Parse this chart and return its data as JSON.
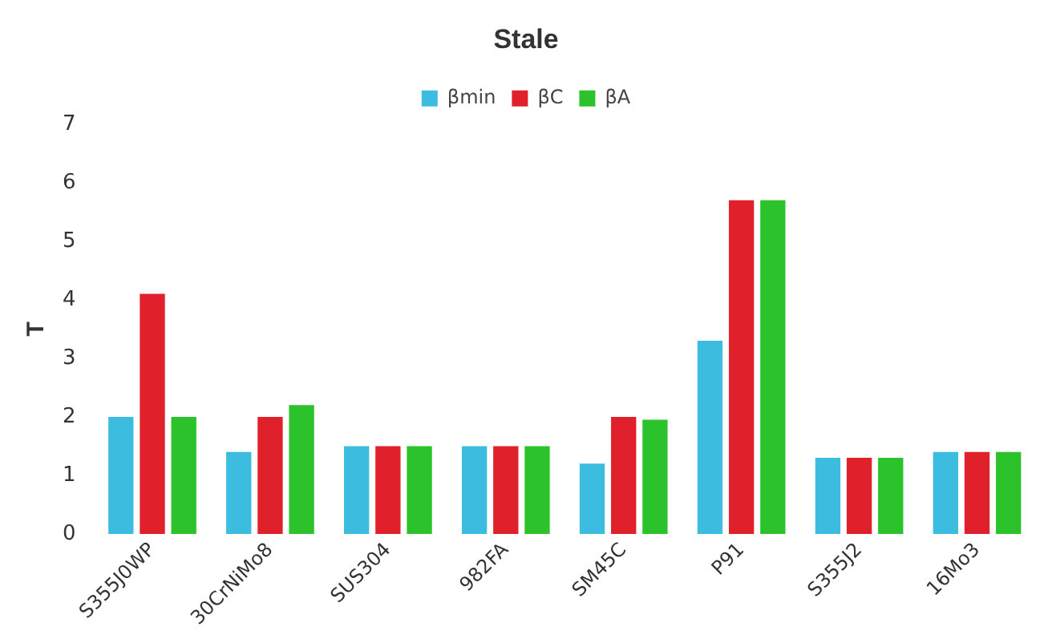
{
  "chart_data": {
    "type": "bar",
    "title": "Stale",
    "ylabel": "T",
    "categories": [
      "S355J0WP",
      "30CrNiMo8",
      "SUS304",
      "982FA",
      "SM45C",
      "P91",
      "S355J2",
      "16Mo3"
    ],
    "series": [
      {
        "name": "βmin",
        "color": "#3cbde0",
        "values": [
          2.0,
          1.4,
          1.5,
          1.5,
          1.2,
          3.3,
          1.3,
          1.4
        ]
      },
      {
        "name": "βC",
        "color": "#e0202a",
        "values": [
          4.1,
          2.0,
          1.5,
          1.5,
          2.0,
          5.7,
          1.3,
          1.4
        ]
      },
      {
        "name": "βA",
        "color": "#2cc22c",
        "values": [
          2.0,
          2.2,
          1.5,
          1.5,
          1.95,
          5.7,
          1.3,
          1.4
        ]
      }
    ],
    "ylim": [
      0,
      7
    ],
    "yticks": [
      0,
      1,
      2,
      3,
      4,
      5,
      6,
      7
    ],
    "grid": false,
    "legend": "top"
  }
}
